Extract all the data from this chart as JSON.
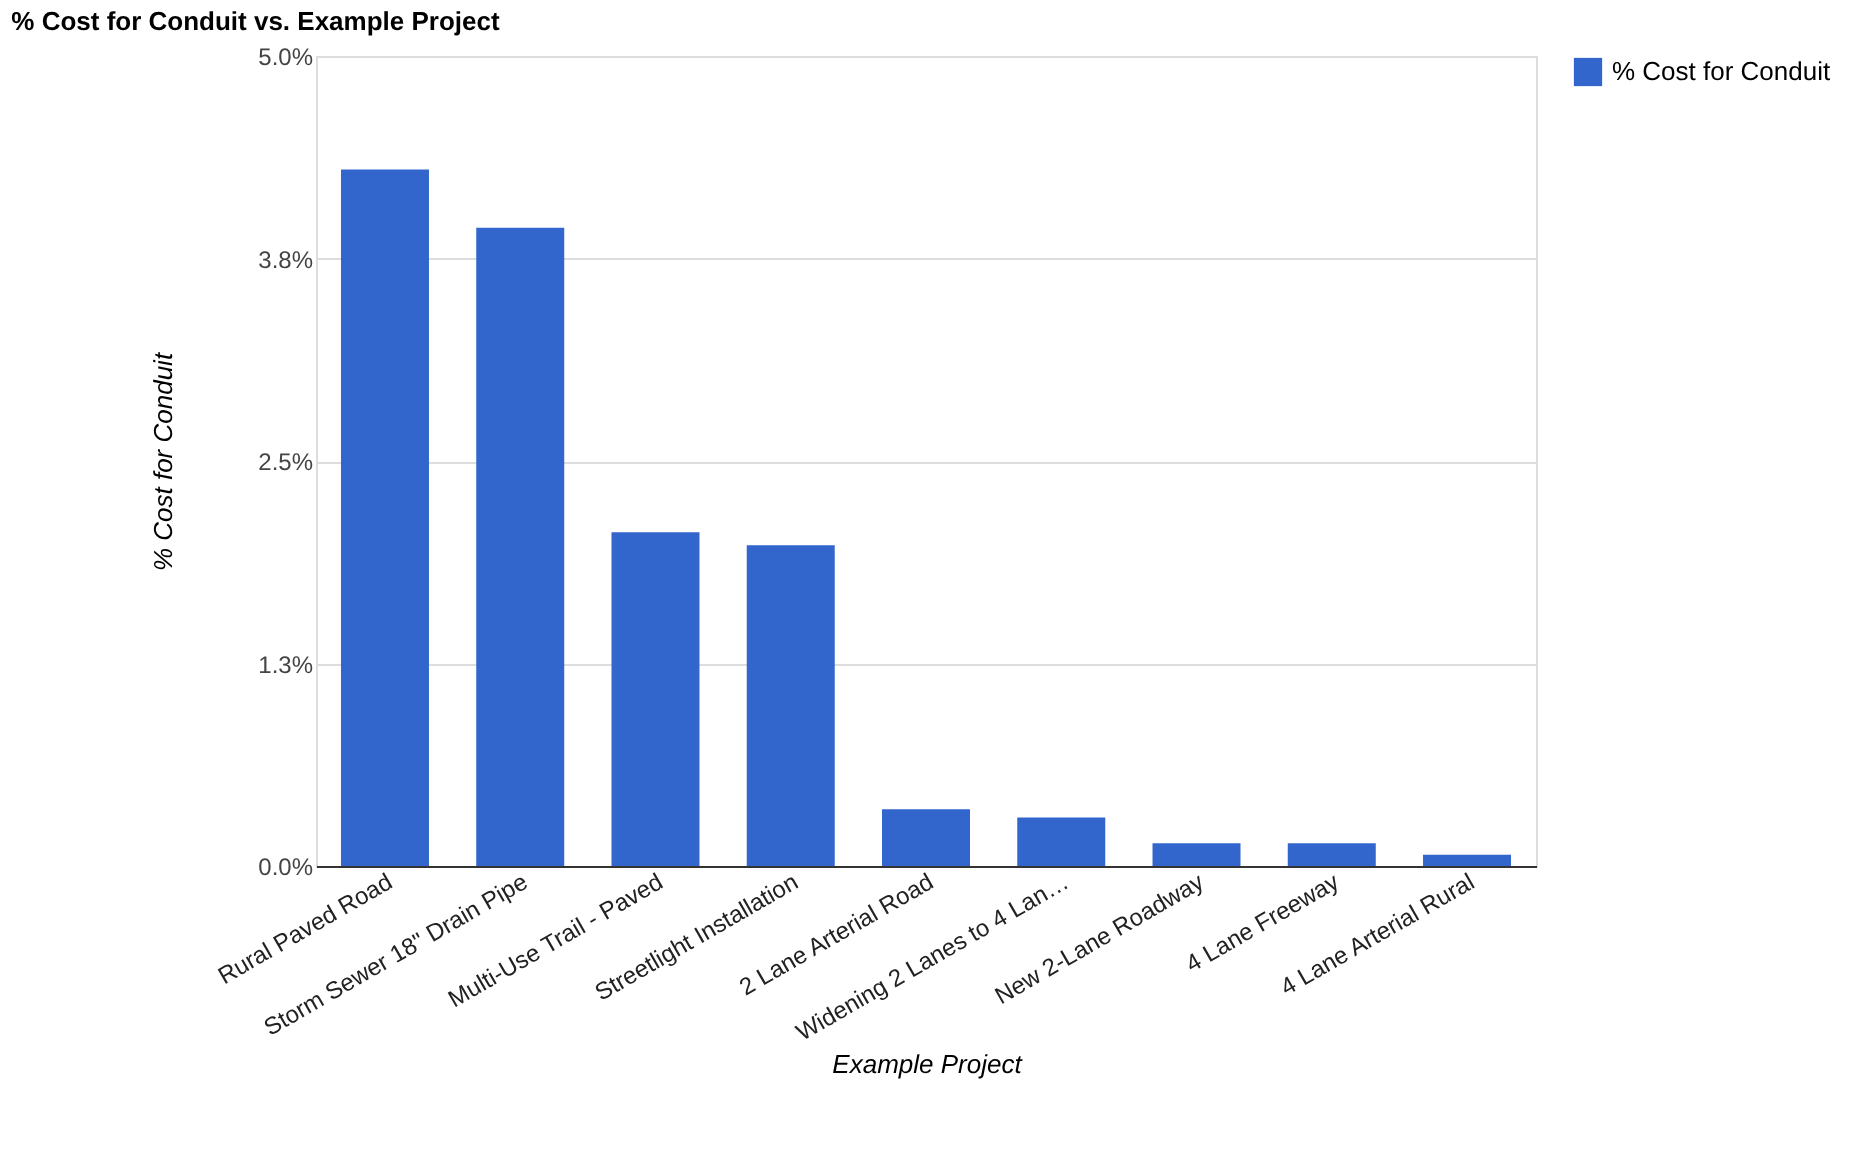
{
  "chart_data": {
    "type": "bar",
    "title": "% Cost for Conduit vs. Example Project",
    "xlabel": "Example Project",
    "ylabel": "% Cost for Conduit",
    "categories": [
      "Rural Paved Road",
      "Storm Sewer 18\" Drain Pipe",
      "Multi-Use Trail - Paved",
      "Streetlight Installation",
      "2 Lane Arterial Road",
      "Widening 2 Lanes to 4 Lan…",
      "New 2-Lane Roadway",
      "4 Lane Freeway",
      "4 Lane Arterial Rural"
    ],
    "series": [
      {
        "name": "% Cost for Conduit",
        "color": "#3366cc",
        "values": [
          4.3,
          3.94,
          2.06,
          1.98,
          0.35,
          0.3,
          0.14,
          0.14,
          0.07
        ]
      }
    ],
    "ylim": [
      0,
      5.0
    ],
    "yticks": [
      {
        "value": 0,
        "label": "0.0%"
      },
      {
        "value": 1.25,
        "label": "1.3%"
      },
      {
        "value": 2.5,
        "label": "2.5%"
      },
      {
        "value": 3.75,
        "label": "3.8%"
      },
      {
        "value": 5.0,
        "label": "5.0%"
      }
    ],
    "grid": "y",
    "legend": "top right"
  }
}
